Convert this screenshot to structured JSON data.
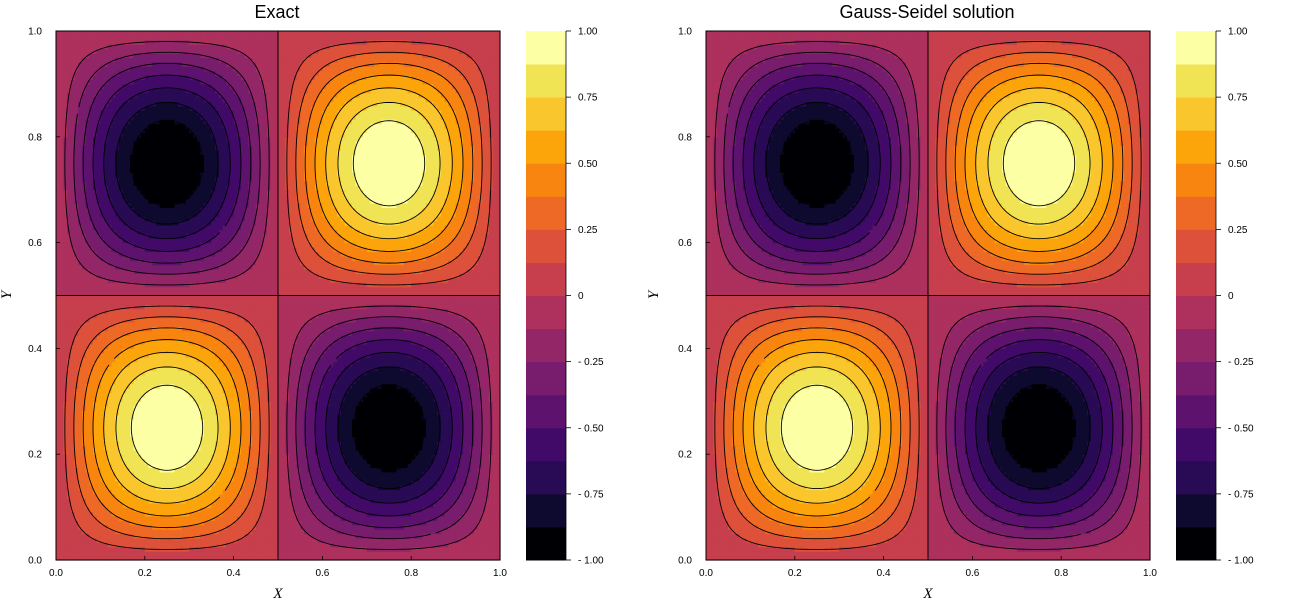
{
  "colorscale": [
    "#000004",
    "#0e0a2f",
    "#280b54",
    "#420a68",
    "#5d126e",
    "#781c6d",
    "#932667",
    "#ad305d",
    "#c73e4c",
    "#dd513a",
    "#ed6925",
    "#f8850f",
    "#fca50a",
    "#fac62d",
    "#f0e455",
    "#fcffa4"
  ],
  "chart_data": [
    {
      "type": "contour",
      "title": "Exact",
      "xlabel": "X",
      "ylabel": "Y",
      "xlim": [
        0,
        1
      ],
      "ylim": [
        0,
        1
      ],
      "function": "sin(2πx)·sin(2πy)",
      "x_ticks": [
        "0.0",
        "0.2",
        "0.4",
        "0.6",
        "0.8",
        "1.0"
      ],
      "y_ticks": [
        "0.0",
        "0.2",
        "0.4",
        "0.6",
        "0.8",
        "1.0"
      ],
      "contour_levels": [
        -1.0,
        -0.875,
        -0.75,
        -0.625,
        -0.5,
        -0.375,
        -0.25,
        -0.125,
        0.0,
        0.125,
        0.25,
        0.375,
        0.5,
        0.625,
        0.75,
        0.875,
        1.0
      ],
      "colorbar": {
        "range": [
          -1,
          1
        ],
        "tick_values": [
          1.0,
          0.75,
          0.5,
          0.25,
          0,
          -0.25,
          -0.5,
          -0.75,
          -1.0
        ],
        "tick_labels": [
          "1.00",
          "0.75",
          "0.50",
          "0.25",
          "0",
          "- 0.25",
          "- 0.50",
          "- 0.75",
          "- 1.00"
        ]
      }
    },
    {
      "type": "contour",
      "title": "Gauss-Seidel solution",
      "xlabel": "X",
      "ylabel": "Y",
      "xlim": [
        0,
        1
      ],
      "ylim": [
        0,
        1
      ],
      "function": "sin(2πx)·sin(2πy)",
      "x_ticks": [
        "0.0",
        "0.2",
        "0.4",
        "0.6",
        "0.8",
        "1.0"
      ],
      "y_ticks": [
        "0.0",
        "0.2",
        "0.4",
        "0.6",
        "0.8",
        "1.0"
      ],
      "contour_levels": [
        -1.0,
        -0.875,
        -0.75,
        -0.625,
        -0.5,
        -0.375,
        -0.25,
        -0.125,
        0.0,
        0.125,
        0.25,
        0.375,
        0.5,
        0.625,
        0.75,
        0.875,
        1.0
      ],
      "colorbar": {
        "range": [
          -1,
          1
        ],
        "tick_values": [
          1.0,
          0.75,
          0.5,
          0.25,
          0,
          -0.25,
          -0.5,
          -0.75,
          -1.0
        ],
        "tick_labels": [
          "1.00",
          "0.75",
          "0.50",
          "0.25",
          "0",
          "- 0.25",
          "- 0.50",
          "- 0.75",
          "- 1.00"
        ]
      }
    }
  ]
}
